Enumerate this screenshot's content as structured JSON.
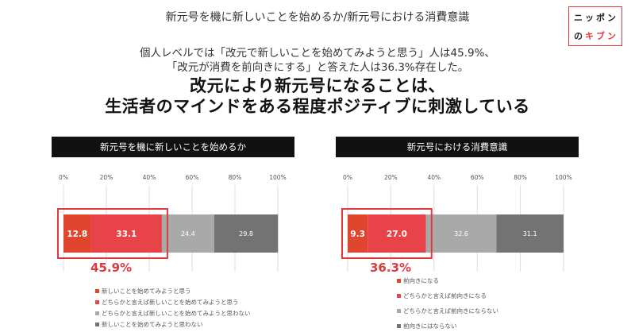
{
  "header": {
    "title": "新元号を機に新しいことを始めるか/新元号における消費意識",
    "logo": {
      "line1": [
        "ニ",
        "ッ",
        "ポ",
        "ン"
      ],
      "line2": [
        "の",
        "キ",
        "ブ",
        "ン"
      ]
    }
  },
  "summary": {
    "line1": "個人レベルでは「改元で新しいことを始めてみようと思う」人は45.9%、",
    "line2": "「改元が消費を前向きにする」と答えた人は36.3%存在した。",
    "headline1": "改元により新元号になることは、",
    "headline2": "生活者のマインドをある程度ポジティブに刺激している"
  },
  "colors": {
    "dark_red": "#e0452d",
    "red": "#e9434a",
    "light_gray": "#a9a9a9",
    "dark_gray": "#737373",
    "highlight": "#e03a3e"
  },
  "chart_data": [
    {
      "type": "bar",
      "stacked": true,
      "orientation": "horizontal",
      "title": "新元号を機に新しいことを始めるか",
      "xlim": [
        0,
        100
      ],
      "x_ticks": [
        "0%",
        "20%",
        "40%",
        "60%",
        "80%",
        "100%"
      ],
      "series": [
        {
          "name": "新しいことを始めてみようと思う",
          "value": 12.8,
          "label": "12.8",
          "color": "#e0452d"
        },
        {
          "name": "どちらかと言えば新しいことを始めてみようと思う",
          "value": 33.1,
          "label": "33.1",
          "color": "#e9434a"
        },
        {
          "name": "どちらかと言えば新しいことを始めてみようと思わない",
          "value": 24.4,
          "label": "24.4",
          "color": "#a9a9a9"
        },
        {
          "name": "新しいことを始めてみようと思わない",
          "value": 29.8,
          "label": "29.8",
          "color": "#737373"
        }
      ],
      "highlight_total": "45.9%",
      "grid": true,
      "legend_position": "bottom"
    },
    {
      "type": "bar",
      "stacked": true,
      "orientation": "horizontal",
      "title": "新元号における消費意識",
      "xlim": [
        0,
        100
      ],
      "x_ticks": [
        "0%",
        "20%",
        "40%",
        "60%",
        "80%",
        "100%"
      ],
      "series": [
        {
          "name": "前向きになる",
          "value": 9.3,
          "label": "9.3",
          "color": "#e0452d"
        },
        {
          "name": "どちらかと言えば前向きになる",
          "value": 27.0,
          "label": "27.0",
          "color": "#e9434a"
        },
        {
          "name": "どちらかと言えば前向きにならない",
          "value": 32.6,
          "label": "32.6",
          "color": "#a9a9a9"
        },
        {
          "name": "前向きにはならない",
          "value": 31.1,
          "label": "31.1",
          "color": "#737373"
        }
      ],
      "highlight_total": "36.3%",
      "grid": true,
      "legend_position": "bottom"
    }
  ]
}
